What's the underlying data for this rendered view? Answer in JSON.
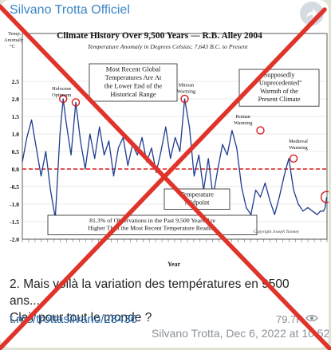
{
  "post": {
    "channel_name": "Silvano Trotta Officiel",
    "caption_line1": "2. Mais voilà la variation des températures en 9500 ans....",
    "caption_line2": "Clair pour tout le monde ?",
    "link": "t.me/trottasilvano/28436",
    "views": "79.7K",
    "author_date": "Silvano Trotta, Dec 6, 2022 at 10:52"
  },
  "icons": {
    "share": "share-arrow-icon",
    "views": "eye-icon"
  },
  "colors": {
    "accent": "#3d87c7",
    "cross": "#e0342b",
    "series": "#1f3c8f",
    "midpoint": "#d81b1b"
  },
  "chart_data": {
    "type": "line",
    "title": "Climate History Over 9,500 Years — R.B. Alley 2004",
    "subtitle": "Temperature Anomaly in Degrees Celsius; 7,643 B.C. to Present",
    "ylabel": "Temp. Anomaly °C",
    "xlabel": "Year",
    "ylim": [
      -2.0,
      2.5
    ],
    "xlim": [
      -7643,
      2010
    ],
    "yticks": [
      "2.5",
      "2.0",
      "1.5",
      "1.0",
      "0.5",
      "0.0",
      "-0.5",
      "-1.0",
      "-1.5",
      "-2.0"
    ],
    "ytick_values": [
      2.5,
      2.0,
      1.5,
      1.0,
      0.5,
      0.0,
      -0.5,
      -1.0,
      -1.5,
      -2.0
    ],
    "series": [
      {
        "x": [
          -7643,
          -7500,
          -7350,
          -7200,
          -7050,
          -6900,
          -6750,
          -6600,
          -6450,
          -6350,
          -6250,
          -6100,
          -5950,
          -5800,
          -5650,
          -5500,
          -5350,
          -5200,
          -5050,
          -4900,
          -4750,
          -4600,
          -4450,
          -4300,
          -4150,
          -4000,
          -3850,
          -3700,
          -3550,
          -3400,
          -3250,
          -3100,
          -2950,
          -2800,
          -2650,
          -2500,
          -2350,
          -2200,
          -2050,
          -1900,
          -1750,
          -1600,
          -1450,
          -1300,
          -1150,
          -1000,
          -850,
          -700,
          -550,
          -400,
          -250,
          -100,
          50,
          200,
          350,
          500,
          650,
          800,
          950,
          1100,
          1250,
          1400,
          1550,
          1700,
          1800,
          1900,
          1950,
          2000
        ],
        "y": [
          0.2,
          0.9,
          1.4,
          0.6,
          -0.2,
          0.5,
          -0.6,
          -1.4,
          1.0,
          2.0,
          1.3,
          0.4,
          1.9,
          0.8,
          0.0,
          1.0,
          0.3,
          1.2,
          0.4,
          0.8,
          -0.2,
          0.6,
          0.9,
          0.1,
          0.7,
          0.4,
          0.9,
          0.2,
          0.6,
          -0.1,
          0.5,
          1.2,
          0.3,
          0.9,
          0.5,
          2.0,
          1.2,
          -0.2,
          0.4,
          -0.6,
          0.3,
          -0.8,
          0.0,
          0.7,
          0.4,
          1.1,
          0.6,
          -0.5,
          -1.1,
          -1.3,
          -0.6,
          -0.8,
          -0.4,
          -0.9,
          -1.3,
          -0.8,
          -0.2,
          0.3,
          -0.6,
          -1.0,
          -1.2,
          -1.1,
          -1.2,
          -1.3,
          -1.2,
          -1.2,
          -1.1,
          -0.8
        ]
      }
    ],
    "reference_line": {
      "y": 0.0,
      "style": "dashed",
      "color": "#d81b1b"
    },
    "event_labels": [
      "Holocene Optimum",
      "Minoan Warming",
      "Roman Warming",
      "Medieval Warming"
    ],
    "callouts": [
      "Most Recent Global Temperatures Are At the Lower End of the Historical Range",
      "Supposedly \"Unprecedented\" Warmth of the Present Climate",
      "Temperature Midpoint",
      "81.3% of Observations in the Past 9,500 Years Are Higher Than the Most Recent Temperature Reading"
    ],
    "copyright": "Copyright Joseph Toomey"
  }
}
